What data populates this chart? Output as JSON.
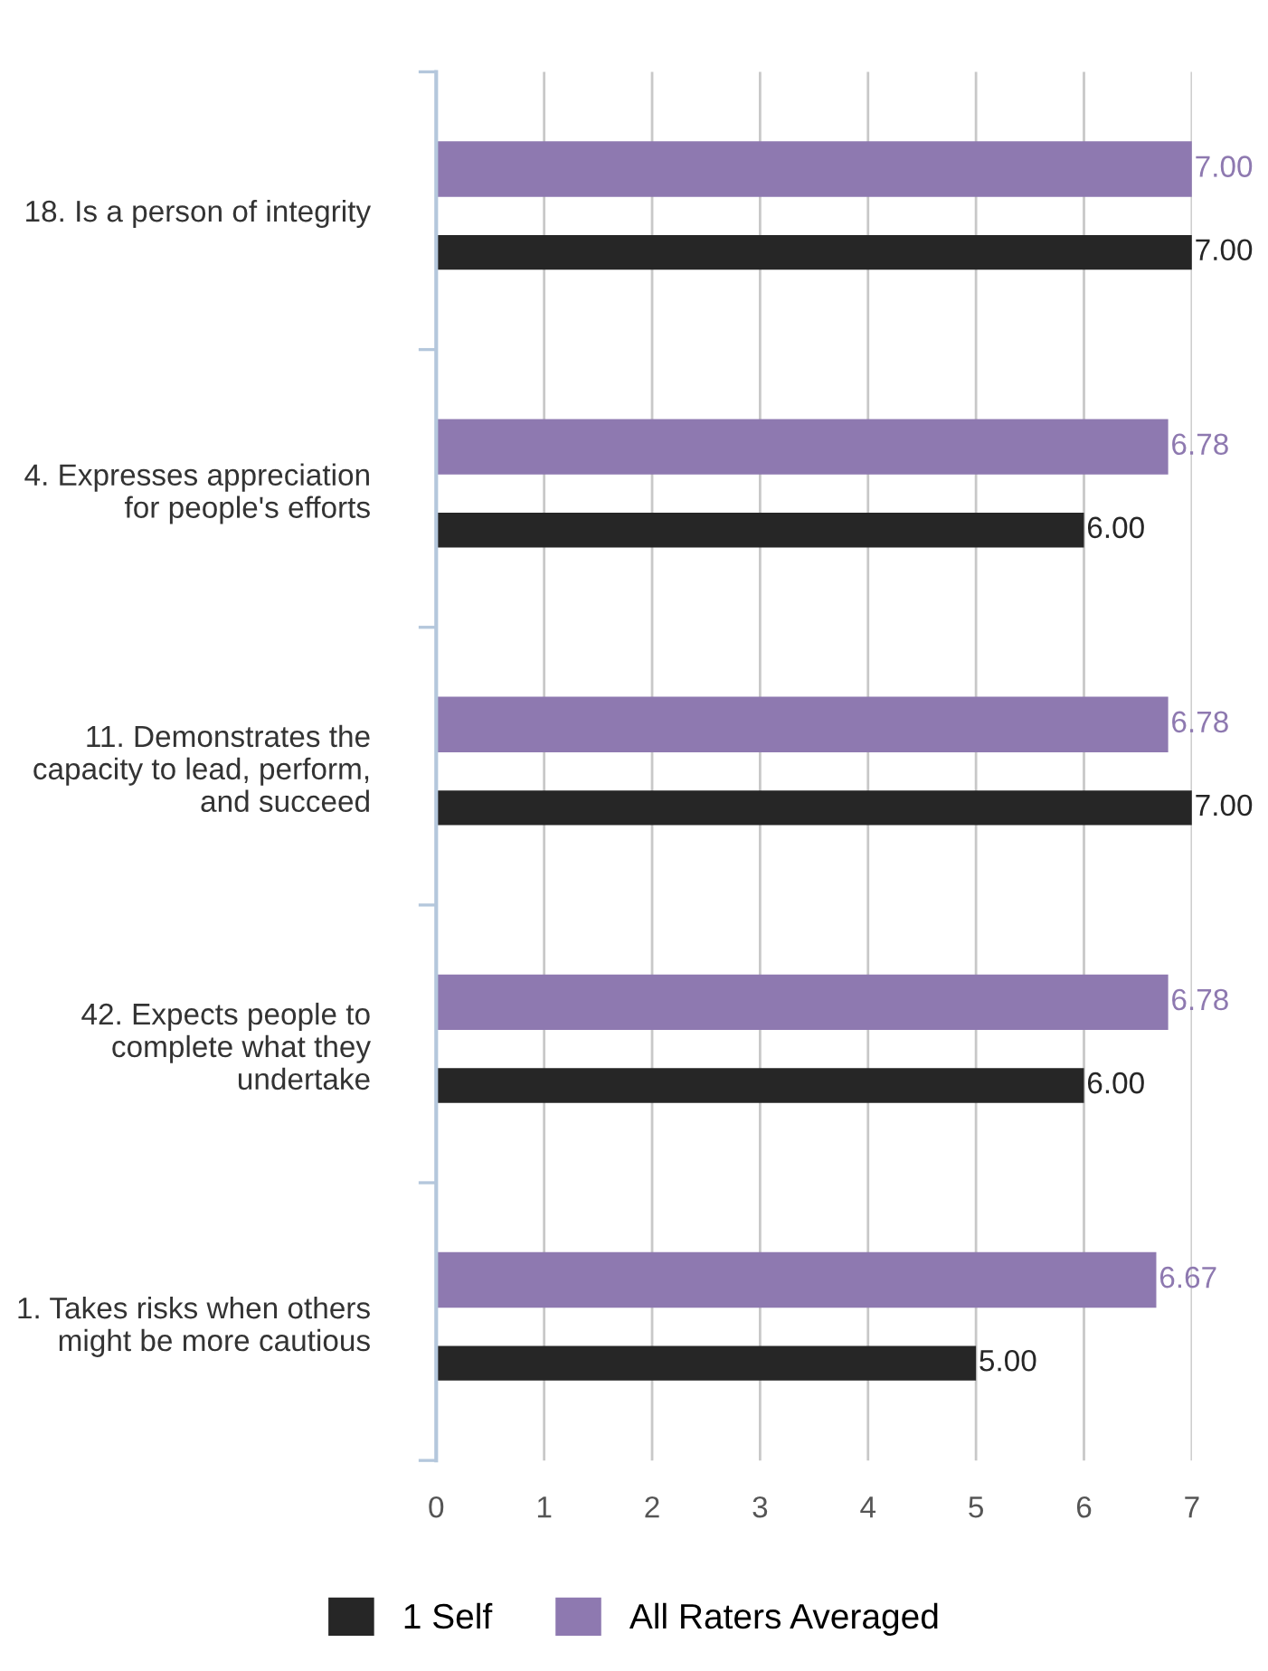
{
  "chart_data": {
    "type": "bar",
    "orientation": "horizontal",
    "categories": [
      "18. Is a person of integrity",
      "4. Expresses appreciation\nfor people's efforts",
      "11. Demonstrates the\ncapacity to lead, perform,\nand succeed",
      "42. Expects people to\ncomplete what they\nundertake",
      "1. Takes risks when others\nmight be more cautious"
    ],
    "series": [
      {
        "name": "1 Self",
        "color": "#262626",
        "values": [
          7.0,
          6.0,
          7.0,
          6.0,
          5.0
        ],
        "value_labels": [
          "7.00",
          "6.00",
          "7.00",
          "6.00",
          "5.00"
        ]
      },
      {
        "name": "All Raters Averaged",
        "color": "#8e79b0",
        "values": [
          7.0,
          6.78,
          6.78,
          6.78,
          6.67
        ],
        "value_labels": [
          "7.00",
          "6.78",
          "6.78",
          "6.78",
          "6.67"
        ]
      }
    ],
    "xlim": [
      0,
      7
    ],
    "xticks": [
      0,
      1,
      2,
      3,
      4,
      5,
      6,
      7
    ],
    "grid": "x",
    "legend": "bottom"
  }
}
